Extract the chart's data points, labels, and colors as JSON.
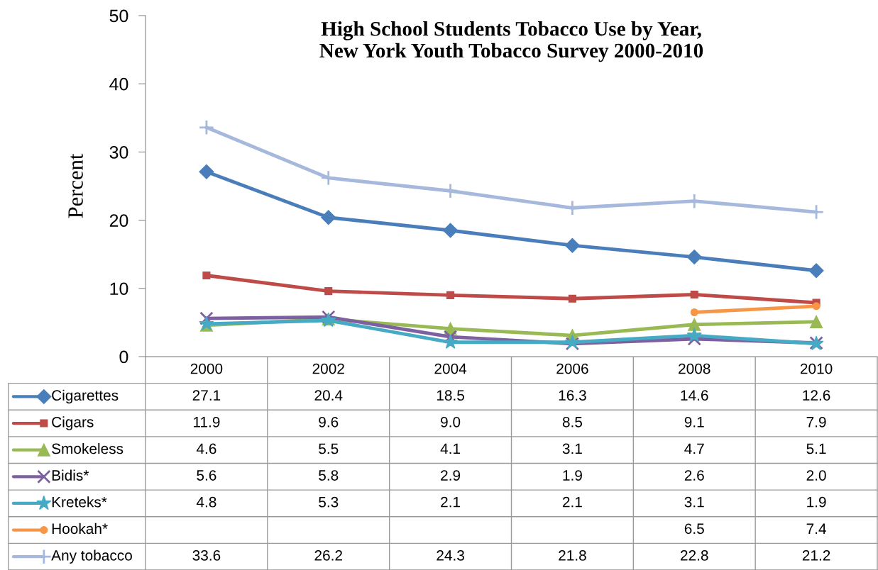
{
  "chart_data": {
    "type": "line",
    "title": "High School Students Tobacco Use by Year,\nNew York Youth Tobacco Survey 2000-2010",
    "ylabel": "Percent",
    "categories": [
      "2000",
      "2002",
      "2004",
      "2006",
      "2008",
      "2010"
    ],
    "series": [
      {
        "name": "Cigarettes",
        "color": "#4a7ebb",
        "marker": "diamond",
        "values": [
          27.1,
          20.4,
          18.5,
          16.3,
          14.6,
          12.6
        ],
        "value_labels": [
          "27.1",
          "20.4",
          "18.5",
          "16.3",
          "14.6",
          "12.6"
        ]
      },
      {
        "name": "Cigars",
        "color": "#be4b48",
        "marker": "square",
        "values": [
          11.9,
          9.6,
          9.0,
          8.5,
          9.1,
          7.9
        ],
        "value_labels": [
          "11.9",
          "9.6",
          "9.0",
          "8.5",
          "9.1",
          "7.9"
        ]
      },
      {
        "name": "Smokeless",
        "color": "#98b954",
        "marker": "triangle",
        "values": [
          4.6,
          5.5,
          4.1,
          3.1,
          4.7,
          5.1
        ],
        "value_labels": [
          "4.6",
          "5.5",
          "4.1",
          "3.1",
          "4.7",
          "5.1"
        ]
      },
      {
        "name": "Bidis*",
        "color": "#7d60a0",
        "marker": "cross",
        "values": [
          5.6,
          5.8,
          2.9,
          1.9,
          2.6,
          2.0
        ],
        "value_labels": [
          "5.6",
          "5.8",
          "2.9",
          "1.9",
          "2.6",
          "2.0"
        ]
      },
      {
        "name": "Kreteks*",
        "color": "#46aac5",
        "marker": "star",
        "values": [
          4.8,
          5.3,
          2.1,
          2.1,
          3.1,
          1.9
        ],
        "value_labels": [
          "4.8",
          "5.3",
          "2.1",
          "2.1",
          "3.1",
          "1.9"
        ]
      },
      {
        "name": "Hookah*",
        "color": "#f79646",
        "marker": "circle",
        "values": [
          null,
          null,
          null,
          null,
          6.5,
          7.4
        ],
        "value_labels": [
          null,
          null,
          null,
          null,
          "6.5",
          "7.4"
        ]
      },
      {
        "name": "Any tobacco",
        "color": "#a6b9dd",
        "marker": "plus",
        "values": [
          33.6,
          26.2,
          24.3,
          21.8,
          22.8,
          21.2
        ],
        "value_labels": [
          "33.6",
          "26.2",
          "24.3",
          "21.8",
          "22.8",
          "21.2"
        ]
      }
    ],
    "ylim": [
      0,
      50
    ],
    "yticks": [
      0,
      10,
      20,
      30,
      40,
      50
    ],
    "grid": false,
    "legend": "bottom"
  }
}
